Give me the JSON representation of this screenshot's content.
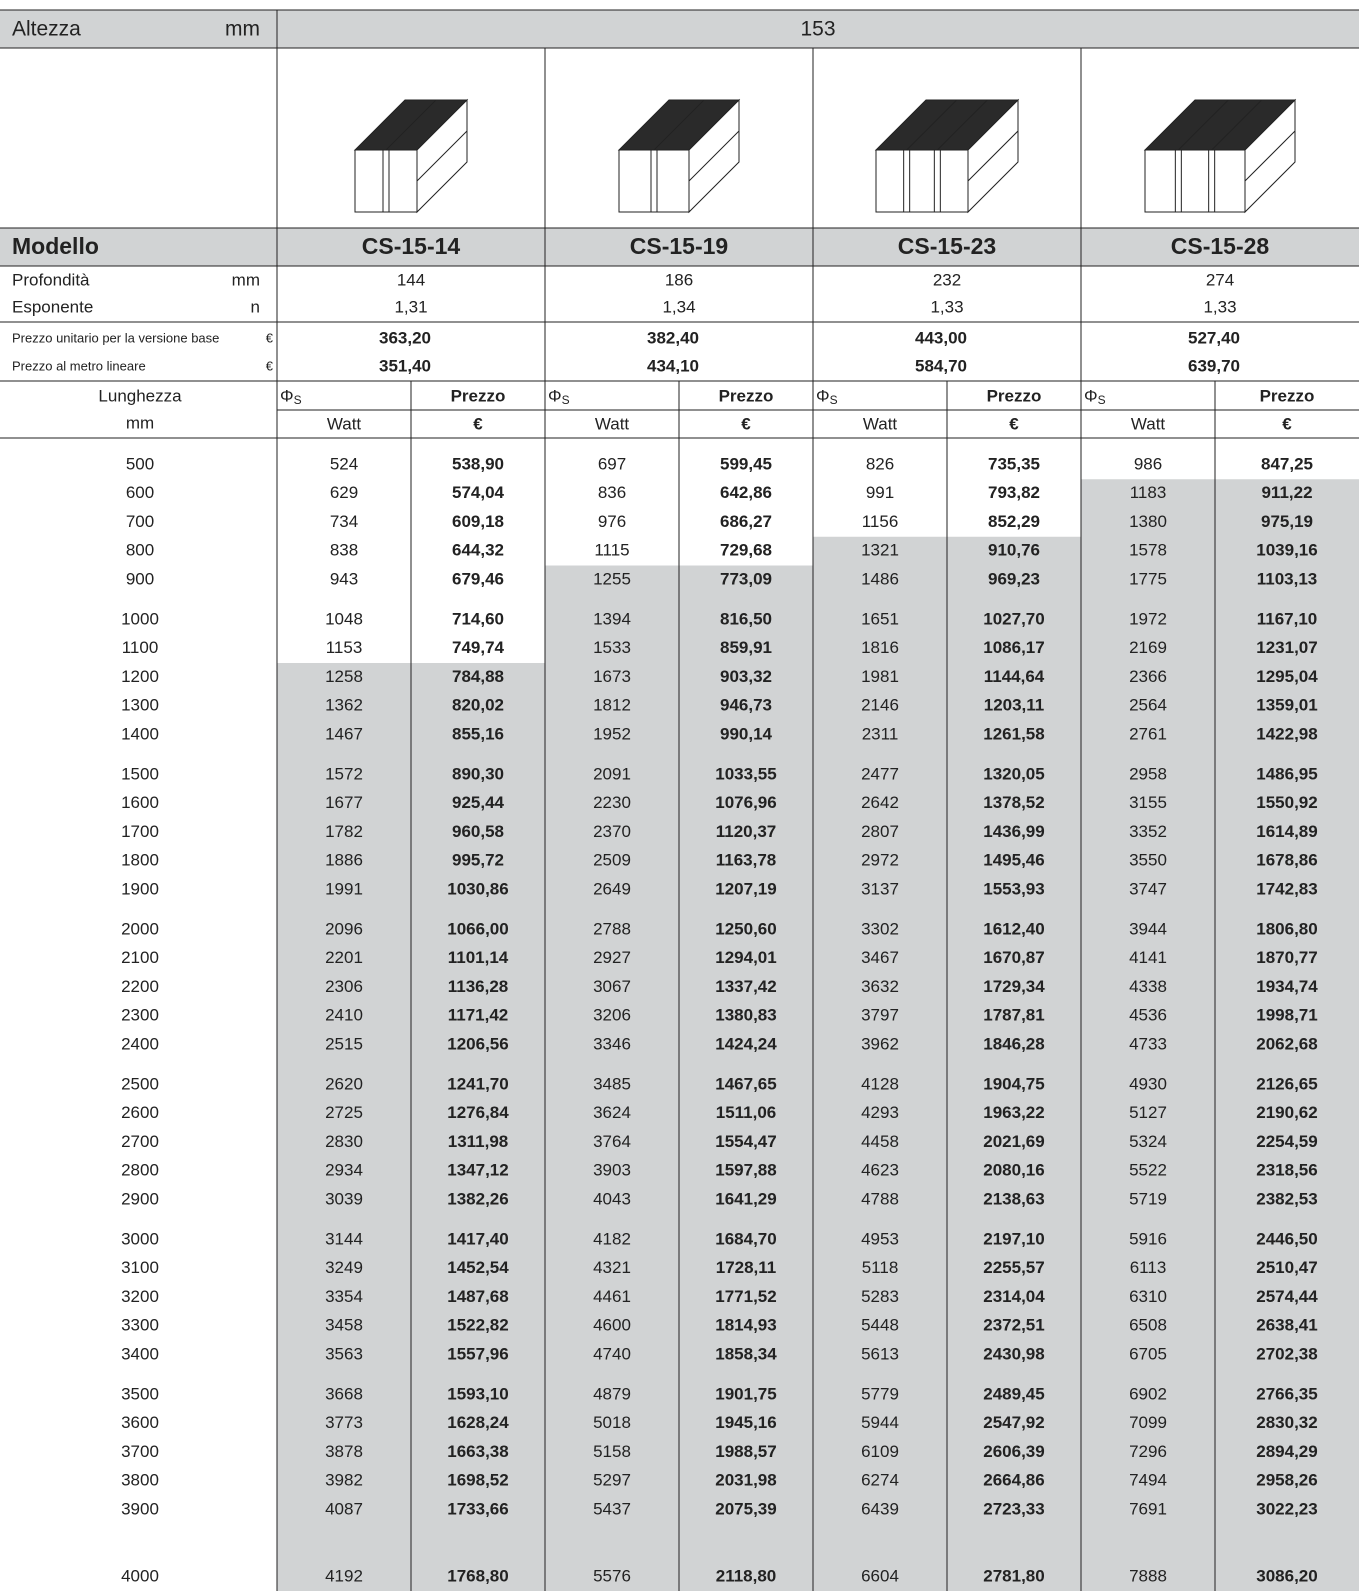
{
  "header": {
    "label": "Altezza",
    "unit": "mm",
    "value": "153"
  },
  "row_labels": {
    "modello": "Modello",
    "profondita": "Profondità",
    "profondita_unit": "mm",
    "esponente": "Esponente",
    "esponente_unit": "n",
    "prezzo_unitario": "Prezzo unitario per la versione base",
    "prezzo_unitario_unit": "€",
    "prezzo_metro": "Prezzo al metro lineare",
    "prezzo_metro_unit": "€"
  },
  "models": [
    {
      "name": "CS-15-14",
      "profondita": "144",
      "esponente": "1,31",
      "prezzo_unitario": "363,20",
      "prezzo_metro": "351,40"
    },
    {
      "name": "CS-15-19",
      "profondita": "186",
      "esponente": "1,34",
      "prezzo_unitario": "382,40",
      "prezzo_metro": "434,10"
    },
    {
      "name": "CS-15-23",
      "profondita": "232",
      "esponente": "1,33",
      "prezzo_unitario": "443,00",
      "prezzo_metro": "584,70"
    },
    {
      "name": "CS-15-28",
      "profondita": "274",
      "esponente": "1,33",
      "prezzo_unitario": "527,40",
      "prezzo_metro": "639,70"
    }
  ],
  "column_headers": {
    "lunghezza": "Lunghezza",
    "lunghezza_unit": "mm",
    "phi": "Φ",
    "phi_sub": "S",
    "prezzo": "Prezzo",
    "watt": "Watt",
    "euro": "€"
  },
  "table": {
    "rows": [
      [
        "500",
        "524",
        "538,90",
        "697",
        "599,45",
        "826",
        "735,35",
        "986",
        "847,25"
      ],
      [
        "600",
        "629",
        "574,04",
        "836",
        "642,86",
        "991",
        "793,82",
        "1183",
        "911,22"
      ],
      [
        "700",
        "734",
        "609,18",
        "976",
        "686,27",
        "1156",
        "852,29",
        "1380",
        "975,19"
      ],
      [
        "800",
        "838",
        "644,32",
        "1115",
        "729,68",
        "1321",
        "910,76",
        "1578",
        "1039,16"
      ],
      [
        "900",
        "943",
        "679,46",
        "1255",
        "773,09",
        "1486",
        "969,23",
        "1775",
        "1103,13"
      ],
      [
        "1000",
        "1048",
        "714,60",
        "1394",
        "816,50",
        "1651",
        "1027,70",
        "1972",
        "1167,10"
      ],
      [
        "1100",
        "1153",
        "749,74",
        "1533",
        "859,91",
        "1816",
        "1086,17",
        "2169",
        "1231,07"
      ],
      [
        "1200",
        "1258",
        "784,88",
        "1673",
        "903,32",
        "1981",
        "1144,64",
        "2366",
        "1295,04"
      ],
      [
        "1300",
        "1362",
        "820,02",
        "1812",
        "946,73",
        "2146",
        "1203,11",
        "2564",
        "1359,01"
      ],
      [
        "1400",
        "1467",
        "855,16",
        "1952",
        "990,14",
        "2311",
        "1261,58",
        "2761",
        "1422,98"
      ],
      [
        "1500",
        "1572",
        "890,30",
        "2091",
        "1033,55",
        "2477",
        "1320,05",
        "2958",
        "1486,95"
      ],
      [
        "1600",
        "1677",
        "925,44",
        "2230",
        "1076,96",
        "2642",
        "1378,52",
        "3155",
        "1550,92"
      ],
      [
        "1700",
        "1782",
        "960,58",
        "2370",
        "1120,37",
        "2807",
        "1436,99",
        "3352",
        "1614,89"
      ],
      [
        "1800",
        "1886",
        "995,72",
        "2509",
        "1163,78",
        "2972",
        "1495,46",
        "3550",
        "1678,86"
      ],
      [
        "1900",
        "1991",
        "1030,86",
        "2649",
        "1207,19",
        "3137",
        "1553,93",
        "3747",
        "1742,83"
      ],
      [
        "2000",
        "2096",
        "1066,00",
        "2788",
        "1250,60",
        "3302",
        "1612,40",
        "3944",
        "1806,80"
      ],
      [
        "2100",
        "2201",
        "1101,14",
        "2927",
        "1294,01",
        "3467",
        "1670,87",
        "4141",
        "1870,77"
      ],
      [
        "2200",
        "2306",
        "1136,28",
        "3067",
        "1337,42",
        "3632",
        "1729,34",
        "4338",
        "1934,74"
      ],
      [
        "2300",
        "2410",
        "1171,42",
        "3206",
        "1380,83",
        "3797",
        "1787,81",
        "4536",
        "1998,71"
      ],
      [
        "2400",
        "2515",
        "1206,56",
        "3346",
        "1424,24",
        "3962",
        "1846,28",
        "4733",
        "2062,68"
      ],
      [
        "2500",
        "2620",
        "1241,70",
        "3485",
        "1467,65",
        "4128",
        "1904,75",
        "4930",
        "2126,65"
      ],
      [
        "2600",
        "2725",
        "1276,84",
        "3624",
        "1511,06",
        "4293",
        "1963,22",
        "5127",
        "2190,62"
      ],
      [
        "2700",
        "2830",
        "1311,98",
        "3764",
        "1554,47",
        "4458",
        "2021,69",
        "5324",
        "2254,59"
      ],
      [
        "2800",
        "2934",
        "1347,12",
        "3903",
        "1597,88",
        "4623",
        "2080,16",
        "5522",
        "2318,56"
      ],
      [
        "2900",
        "3039",
        "1382,26",
        "4043",
        "1641,29",
        "4788",
        "2138,63",
        "5719",
        "2382,53"
      ],
      [
        "3000",
        "3144",
        "1417,40",
        "4182",
        "1684,70",
        "4953",
        "2197,10",
        "5916",
        "2446,50"
      ],
      [
        "3100",
        "3249",
        "1452,54",
        "4321",
        "1728,11",
        "5118",
        "2255,57",
        "6113",
        "2510,47"
      ],
      [
        "3200",
        "3354",
        "1487,68",
        "4461",
        "1771,52",
        "5283",
        "2314,04",
        "6310",
        "2574,44"
      ],
      [
        "3300",
        "3458",
        "1522,82",
        "4600",
        "1814,93",
        "5448",
        "2372,51",
        "6508",
        "2638,41"
      ],
      [
        "3400",
        "3563",
        "1557,96",
        "4740",
        "1858,34",
        "5613",
        "2430,98",
        "6705",
        "2702,38"
      ],
      [
        "3500",
        "3668",
        "1593,10",
        "4879",
        "1901,75",
        "5779",
        "2489,45",
        "6902",
        "2766,35"
      ],
      [
        "3600",
        "3773",
        "1628,24",
        "5018",
        "1945,16",
        "5944",
        "2547,92",
        "7099",
        "2830,32"
      ],
      [
        "3700",
        "3878",
        "1663,38",
        "5158",
        "1988,57",
        "6109",
        "2606,39",
        "7296",
        "2894,29"
      ],
      [
        "3800",
        "3982",
        "1698,52",
        "5297",
        "2031,98",
        "6274",
        "2664,86",
        "7494",
        "2958,26"
      ],
      [
        "3900",
        "4087",
        "1733,66",
        "5437",
        "2075,39",
        "6439",
        "2723,33",
        "7691",
        "3022,23"
      ],
      [
        "4000",
        "4192",
        "1768,80",
        "5576",
        "2118,80",
        "6604",
        "2781,80",
        "7888",
        "3086,20"
      ]
    ]
  }
}
